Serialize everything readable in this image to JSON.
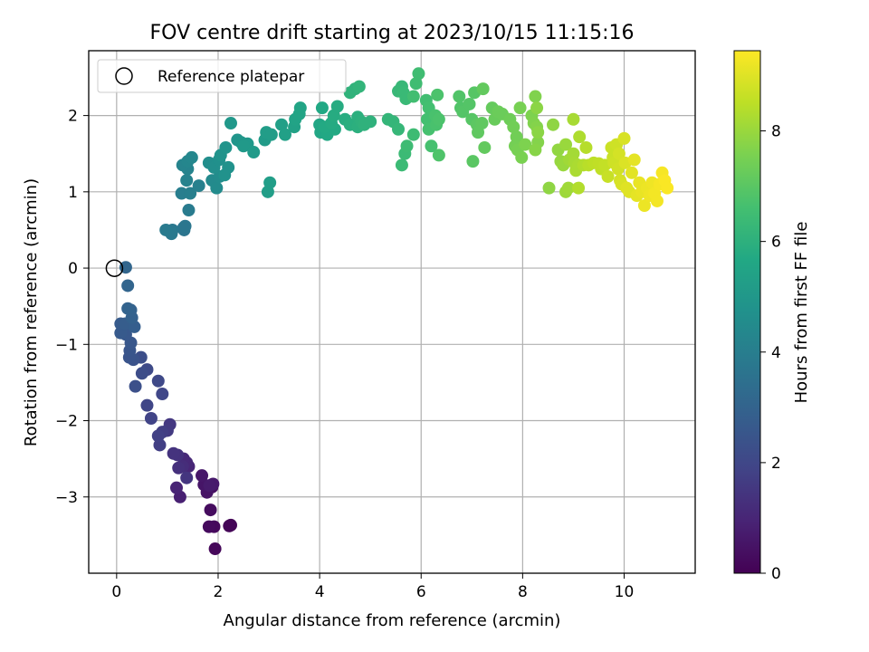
{
  "chart_data": {
    "type": "scatter",
    "title": "FOV centre drift starting at 2023/10/15 11:15:16",
    "xlabel": "Angular distance from reference (arcmin)",
    "ylabel": "Rotation from reference (arcmin)",
    "xlim": [
      -0.55,
      11.4
    ],
    "ylim": [
      -4.0,
      2.85
    ],
    "xticks": [
      0,
      2,
      4,
      6,
      8,
      10
    ],
    "yticks": [
      -3,
      -2,
      -1,
      0,
      1,
      2
    ],
    "grid": true,
    "legend": {
      "position": "top-left",
      "entries": [
        "Reference platepar"
      ]
    },
    "reference_point": {
      "x": 0,
      "y": 0,
      "marker": "open-circle"
    },
    "colorbar": {
      "label": "Hours from first FF file",
      "colormap": "viridis",
      "range": [
        0,
        9.45
      ],
      "ticks": [
        0,
        2,
        4,
        6,
        8
      ]
    },
    "points": [
      [
        2.25,
        -3.37,
        0.05
      ],
      [
        2.22,
        -3.38,
        0.1
      ],
      [
        1.94,
        -3.68,
        0.15
      ],
      [
        1.92,
        -3.39,
        0.2
      ],
      [
        1.82,
        -3.39,
        0.25
      ],
      [
        1.85,
        -3.17,
        0.3
      ],
      [
        1.88,
        -2.87,
        0.4
      ],
      [
        1.78,
        -2.94,
        0.5
      ],
      [
        1.72,
        -2.84,
        0.55
      ],
      [
        1.68,
        -2.72,
        0.6
      ],
      [
        1.9,
        -2.83,
        0.65
      ],
      [
        1.83,
        -2.85,
        0.7
      ],
      [
        1.25,
        -3.0,
        0.85
      ],
      [
        1.18,
        -2.88,
        0.95
      ],
      [
        1.42,
        -2.6,
        1.0
      ],
      [
        1.38,
        -2.55,
        1.05
      ],
      [
        1.32,
        -2.5,
        1.1
      ],
      [
        1.3,
        -2.6,
        1.2
      ],
      [
        1.22,
        -2.62,
        1.3
      ],
      [
        1.2,
        -2.45,
        1.35
      ],
      [
        1.12,
        -2.43,
        1.4
      ],
      [
        1.38,
        -2.75,
        1.45
      ],
      [
        1.05,
        -2.05,
        1.55
      ],
      [
        1.0,
        -2.13,
        1.6
      ],
      [
        0.9,
        -2.15,
        1.7
      ],
      [
        0.85,
        -2.32,
        1.75
      ],
      [
        0.82,
        -2.2,
        1.8
      ],
      [
        0.68,
        -1.97,
        1.9
      ],
      [
        0.6,
        -1.8,
        1.95
      ],
      [
        0.9,
        -1.65,
        2.0
      ],
      [
        0.82,
        -1.48,
        2.05
      ],
      [
        0.6,
        -1.33,
        2.1
      ],
      [
        0.5,
        -1.38,
        2.2
      ],
      [
        0.48,
        -1.17,
        2.25
      ],
      [
        0.37,
        -1.55,
        2.3
      ],
      [
        0.33,
        -1.2,
        2.4
      ],
      [
        0.25,
        -1.17,
        2.45
      ],
      [
        0.26,
        -1.08,
        2.5
      ],
      [
        0.28,
        -0.98,
        2.55
      ],
      [
        0.18,
        -0.87,
        2.6
      ],
      [
        0.08,
        -0.85,
        2.65
      ],
      [
        0.08,
        -0.73,
        2.7
      ],
      [
        0.17,
        -0.73,
        2.75
      ],
      [
        0.35,
        -0.77,
        2.8
      ],
      [
        0.3,
        -0.65,
        2.9
      ],
      [
        0.28,
        -0.55,
        2.95
      ],
      [
        0.22,
        -0.53,
        3.0
      ],
      [
        0.22,
        -0.23,
        3.05
      ],
      [
        0.18,
        0.01,
        3.1
      ],
      [
        1.32,
        0.53,
        3.6
      ],
      [
        1.33,
        0.5,
        3.65
      ],
      [
        1.35,
        0.55,
        3.7
      ],
      [
        1.1,
        0.5,
        3.75
      ],
      [
        1.08,
        0.45,
        3.8
      ],
      [
        0.97,
        0.5,
        3.85
      ],
      [
        1.42,
        0.76,
        3.9
      ],
      [
        1.28,
        0.98,
        4.0
      ],
      [
        1.45,
        0.98,
        4.05
      ],
      [
        1.62,
        1.08,
        4.1
      ],
      [
        1.38,
        1.15,
        4.15
      ],
      [
        1.4,
        1.3,
        4.2
      ],
      [
        1.3,
        1.35,
        4.25
      ],
      [
        1.4,
        1.4,
        4.3
      ],
      [
        1.48,
        1.45,
        4.35
      ],
      [
        1.88,
        1.15,
        4.45
      ],
      [
        1.97,
        1.05,
        4.5
      ],
      [
        2.03,
        1.2,
        4.55
      ],
      [
        1.82,
        1.38,
        4.6
      ],
      [
        1.92,
        1.32,
        4.65
      ],
      [
        2.02,
        1.42,
        4.7
      ],
      [
        2.2,
        1.32,
        4.75
      ],
      [
        2.13,
        1.22,
        4.75
      ],
      [
        2.05,
        1.48,
        4.8
      ],
      [
        2.15,
        1.58,
        4.85
      ],
      [
        2.38,
        1.68,
        4.9
      ],
      [
        2.45,
        1.65,
        4.95
      ],
      [
        2.58,
        1.63,
        5.0
      ],
      [
        2.25,
        1.9,
        5.0
      ],
      [
        2.5,
        1.6,
        5.05
      ],
      [
        2.7,
        1.52,
        5.1
      ],
      [
        2.92,
        1.68,
        5.15
      ],
      [
        2.95,
        1.78,
        5.2
      ],
      [
        3.05,
        1.75,
        5.2
      ],
      [
        2.98,
        1.0,
        5.25
      ],
      [
        3.02,
        1.12,
        5.25
      ],
      [
        3.25,
        1.88,
        5.3
      ],
      [
        3.32,
        1.75,
        5.35
      ],
      [
        3.5,
        1.85,
        5.4
      ],
      [
        3.52,
        1.95,
        5.45
      ],
      [
        3.6,
        2.02,
        5.5
      ],
      [
        3.62,
        2.1,
        5.5
      ],
      [
        4.0,
        1.88,
        5.6
      ],
      [
        4.02,
        1.78,
        5.6
      ],
      [
        4.15,
        1.75,
        5.65
      ],
      [
        4.05,
        2.1,
        5.65
      ],
      [
        4.1,
        1.85,
        5.7
      ],
      [
        4.3,
        1.82,
        5.7
      ],
      [
        4.23,
        1.9,
        5.75
      ],
      [
        4.28,
        2.0,
        5.8
      ],
      [
        4.35,
        2.12,
        5.8
      ],
      [
        4.5,
        1.95,
        5.85
      ],
      [
        4.6,
        1.88,
        5.9
      ],
      [
        4.75,
        1.85,
        5.95
      ],
      [
        4.75,
        1.98,
        5.95
      ],
      [
        4.82,
        1.92,
        6.0
      ],
      [
        4.88,
        1.88,
        6.05
      ],
      [
        5.0,
        1.92,
        6.05
      ],
      [
        4.6,
        2.3,
        6.1
      ],
      [
        4.7,
        2.35,
        6.1
      ],
      [
        4.78,
        2.38,
        6.15
      ],
      [
        5.35,
        1.95,
        6.2
      ],
      [
        5.45,
        1.92,
        6.2
      ],
      [
        5.55,
        1.82,
        6.25
      ],
      [
        5.55,
        2.32,
        6.3
      ],
      [
        5.62,
        2.38,
        6.3
      ],
      [
        5.65,
        2.3,
        6.35
      ],
      [
        5.7,
        2.22,
        6.35
      ],
      [
        5.62,
        1.35,
        6.4
      ],
      [
        5.68,
        1.5,
        6.4
      ],
      [
        5.72,
        1.6,
        6.45
      ],
      [
        5.85,
        1.75,
        6.45
      ],
      [
        5.9,
        2.42,
        6.5
      ],
      [
        5.95,
        2.55,
        6.5
      ],
      [
        5.85,
        2.25,
        6.55
      ],
      [
        6.1,
        2.2,
        6.55
      ],
      [
        6.15,
        2.1,
        6.6
      ],
      [
        6.12,
        1.95,
        6.6
      ],
      [
        6.15,
        1.82,
        6.65
      ],
      [
        6.2,
        1.6,
        6.65
      ],
      [
        6.28,
        2.0,
        6.7
      ],
      [
        6.3,
        1.88,
        6.7
      ],
      [
        6.35,
        1.95,
        6.75
      ],
      [
        6.32,
        2.27,
        6.75
      ],
      [
        6.35,
        1.48,
        6.8
      ],
      [
        6.75,
        2.25,
        6.85
      ],
      [
        6.78,
        2.1,
        6.85
      ],
      [
        6.82,
        2.05,
        6.9
      ],
      [
        6.95,
        2.15,
        6.9
      ],
      [
        7.0,
        1.95,
        6.95
      ],
      [
        7.05,
        2.3,
        6.95
      ],
      [
        7.02,
        1.4,
        7.0
      ],
      [
        7.1,
        1.88,
        7.05
      ],
      [
        7.12,
        1.78,
        7.1
      ],
      [
        7.2,
        1.9,
        7.1
      ],
      [
        7.22,
        2.35,
        7.15
      ],
      [
        7.25,
        1.58,
        7.15
      ],
      [
        7.4,
        2.1,
        7.2
      ],
      [
        7.45,
        1.95,
        7.25
      ],
      [
        7.52,
        2.05,
        7.3
      ],
      [
        7.6,
        2.02,
        7.3
      ],
      [
        7.75,
        1.95,
        7.35
      ],
      [
        7.82,
        1.85,
        7.4
      ],
      [
        7.88,
        1.72,
        7.4
      ],
      [
        7.85,
        1.6,
        7.45
      ],
      [
        7.9,
        1.55,
        7.5
      ],
      [
        7.95,
        2.1,
        7.5
      ],
      [
        7.98,
        1.45,
        7.55
      ],
      [
        8.05,
        1.62,
        7.6
      ],
      [
        8.18,
        2.0,
        7.6
      ],
      [
        8.22,
        1.9,
        7.65
      ],
      [
        8.25,
        2.25,
        7.65
      ],
      [
        8.28,
        1.85,
        7.7
      ],
      [
        8.3,
        1.65,
        7.7
      ],
      [
        8.25,
        1.55,
        7.75
      ],
      [
        8.3,
        1.78,
        7.8
      ],
      [
        8.28,
        2.1,
        7.8
      ],
      [
        8.52,
        1.05,
        7.85
      ],
      [
        8.6,
        1.88,
        7.85
      ],
      [
        8.7,
        1.55,
        7.9
      ],
      [
        8.75,
        1.4,
        7.95
      ],
      [
        8.8,
        1.35,
        8.0
      ],
      [
        8.85,
        1.62,
        8.0
      ],
      [
        8.85,
        1.0,
        8.05
      ],
      [
        8.9,
        1.05,
        8.1
      ],
      [
        8.92,
        1.42,
        8.1
      ],
      [
        9.0,
        1.5,
        8.15
      ],
      [
        9.02,
        1.38,
        8.2
      ],
      [
        9.0,
        1.95,
        8.2
      ],
      [
        9.05,
        1.28,
        8.25
      ],
      [
        9.1,
        1.35,
        8.25
      ],
      [
        9.12,
        1.72,
        8.3
      ],
      [
        9.1,
        1.05,
        8.35
      ],
      [
        9.2,
        1.35,
        8.35
      ],
      [
        9.25,
        1.58,
        8.4
      ],
      [
        9.3,
        1.35,
        8.45
      ],
      [
        9.4,
        1.38,
        8.5
      ],
      [
        9.5,
        1.37,
        8.55
      ],
      [
        9.55,
        1.3,
        8.55
      ],
      [
        9.62,
        1.35,
        8.6
      ],
      [
        9.68,
        1.2,
        8.65
      ],
      [
        9.75,
        1.58,
        8.7
      ],
      [
        9.78,
        1.45,
        8.7
      ],
      [
        9.8,
        1.38,
        8.75
      ],
      [
        9.85,
        1.62,
        8.75
      ],
      [
        9.88,
        1.3,
        8.8
      ],
      [
        9.9,
        1.5,
        8.85
      ],
      [
        9.92,
        1.15,
        8.85
      ],
      [
        9.95,
        1.1,
        8.9
      ],
      [
        10.0,
        1.7,
        8.9
      ],
      [
        10.02,
        1.38,
        8.95
      ],
      [
        10.05,
        1.05,
        9.0
      ],
      [
        10.1,
        1.0,
        9.0
      ],
      [
        10.15,
        1.25,
        9.05
      ],
      [
        10.2,
        1.42,
        9.1
      ],
      [
        10.25,
        0.95,
        9.1
      ],
      [
        10.3,
        1.12,
        9.15
      ],
      [
        10.35,
        1.0,
        9.15
      ],
      [
        10.4,
        0.82,
        9.2
      ],
      [
        10.45,
        1.05,
        9.2
      ],
      [
        10.5,
        0.95,
        9.25
      ],
      [
        10.55,
        1.12,
        9.25
      ],
      [
        10.6,
        0.98,
        9.3
      ],
      [
        10.65,
        0.88,
        9.3
      ],
      [
        10.7,
        1.1,
        9.35
      ],
      [
        10.75,
        1.25,
        9.35
      ],
      [
        10.8,
        1.15,
        9.4
      ],
      [
        10.85,
        1.05,
        9.4
      ]
    ]
  }
}
